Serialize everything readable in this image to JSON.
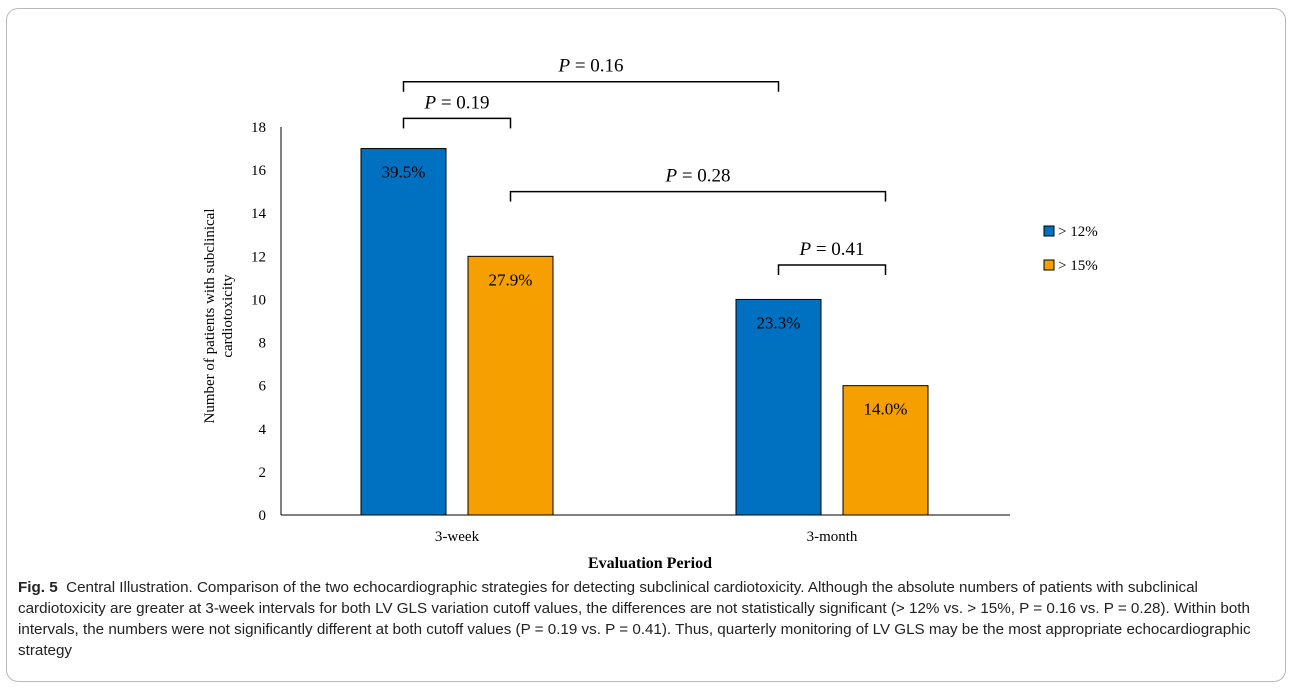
{
  "chart_data": {
    "type": "bar",
    "xlabel": "Evaluation Period",
    "ylabel_lines": [
      "Number of patients with subclinical",
      "cardiotoxicity"
    ],
    "categories": [
      "3-week",
      "3-month"
    ],
    "ylim": [
      0,
      18
    ],
    "yticks": [
      0,
      2,
      4,
      6,
      8,
      10,
      12,
      14,
      16,
      18
    ],
    "grid": false,
    "legend_position": "right",
    "series": [
      {
        "name": "> 12%",
        "color": "#0070C0",
        "values": [
          17,
          10
        ],
        "labels": [
          "39.5%",
          "23.3%"
        ]
      },
      {
        "name": "> 15%",
        "color": "#F5A000",
        "values": [
          12,
          6
        ],
        "labels": [
          "27.9%",
          "14.0%"
        ]
      }
    ],
    "annotations": [
      {
        "text": "P = 0.16",
        "from": {
          "category": 0,
          "series": 0
        },
        "to": {
          "category": 1,
          "series": 0
        },
        "level": 20.1
      },
      {
        "text": "P = 0.19",
        "from": {
          "category": 0,
          "series": 0
        },
        "to": {
          "category": 0,
          "series": 1
        },
        "level": 18.4
      },
      {
        "text": "P = 0.28",
        "from": {
          "category": 0,
          "series": 1
        },
        "to": {
          "category": 1,
          "series": 1
        },
        "level": 15.0
      },
      {
        "text": "P = 0.41",
        "from": {
          "category": 1,
          "series": 0
        },
        "to": {
          "category": 1,
          "series": 1
        },
        "level": 11.6
      }
    ]
  },
  "caption": {
    "fig_label": "Fig. 5",
    "text": "Central Illustration. Comparison of the two echocardiographic strategies for detecting subclinical cardiotoxicity. Although the absolute numbers of patients with subclinical cardiotoxicity are greater at 3-week intervals for both LV GLS variation cutoff values, the differences are not statistically significant (> 12% vs. > 15%, P = 0.16 vs. P = 0.28). Within both intervals, the numbers were not significantly different at both cutoff values (P = 0.19 vs. P = 0.41). Thus, quarterly monitoring of LV GLS may be the most appropriate echocardiographic strategy"
  }
}
